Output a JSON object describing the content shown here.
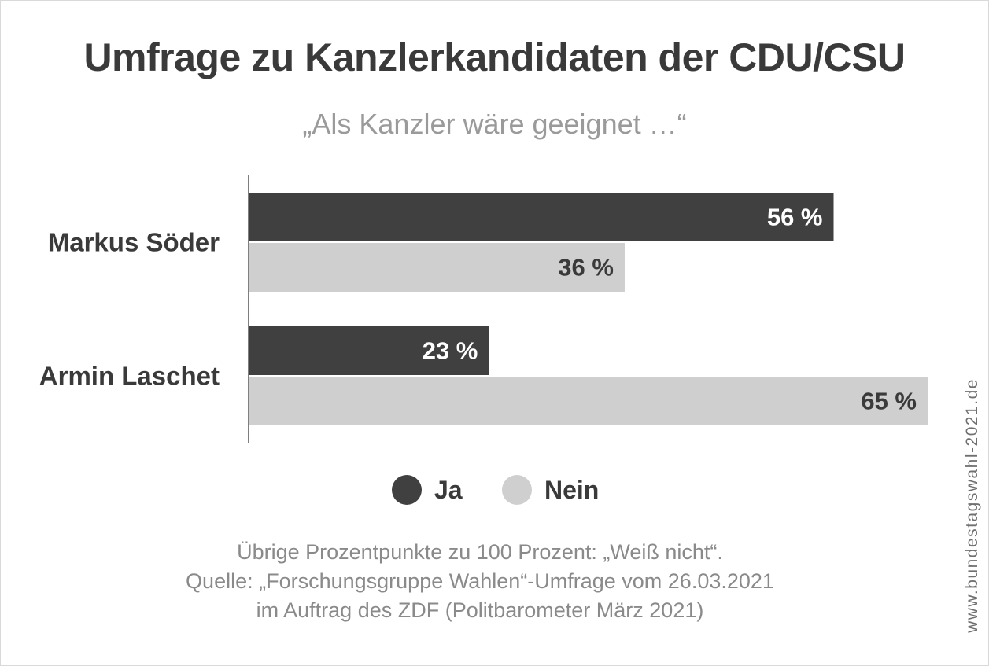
{
  "title": "Umfrage zu Kanzlerkandidaten der CDU/CSU",
  "subtitle": "„Als Kanzler wäre geeignet …“",
  "chart_data": {
    "type": "bar",
    "orientation": "horizontal",
    "title": "Umfrage zu Kanzlerkandidaten der CDU/CSU",
    "subtitle": "„Als Kanzler wäre geeignet …“",
    "categories": [
      "Markus Söder",
      "Armin Laschet"
    ],
    "series": [
      {
        "name": "Ja",
        "values": [
          56,
          23
        ],
        "labels": [
          "56 %",
          "23 %"
        ],
        "color": "#404040"
      },
      {
        "name": "Nein",
        "values": [
          36,
          65
        ],
        "labels": [
          "36 %",
          "65 %"
        ],
        "color": "#cfcfcf"
      }
    ],
    "unit": "%",
    "xlim": [
      0,
      65
    ],
    "grid": false,
    "legend_position": "bottom"
  },
  "legend": [
    {
      "label": "Ja",
      "color": "#404040"
    },
    {
      "label": "Nein",
      "color": "#cfcfcf"
    }
  ],
  "notes": [
    "Übrige Prozentpunkte zu 100 Prozent: „Weiß nicht“.",
    "Quelle: „Forschungsgruppe Wahlen“-Umfrage vom 26.03.2021",
    "im Auftrag des ZDF (Politbarometer März 2021)"
  ],
  "watermark": "www.bundestagswahl-2021.de"
}
